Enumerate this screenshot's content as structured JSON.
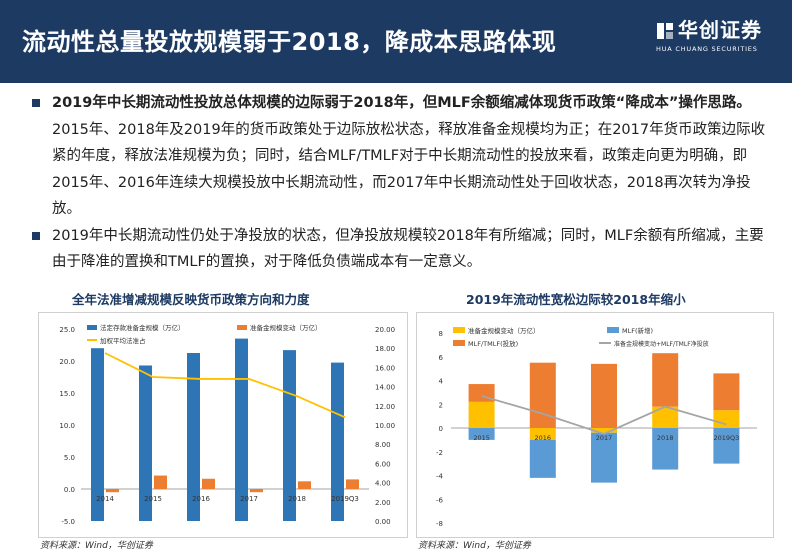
{
  "header": {
    "title": "流动性总量投放规模弱于2018，降成本思路体现",
    "logo_name": "华创证券",
    "logo_sub": "HUA CHUANG SECURITIES"
  },
  "bullets": [
    {
      "bold_text": "2019年中长期流动性投放总体规模的边际弱于2018年，但MLF余额缩减体现货币政策“降成本”操作思路。",
      "text": "2015年、2018年及2019年的货币政策处于边际放松状态，释放准备金规模均为正；在2017年货币政策边际收紧的年度，释放法准规模为负；同时，结合MLF/TMLF对于中长期流动性的投放来看，政策走向更为明确，即2015年、2016年连续大规模投放中长期流动性，而2017年中长期流动性处于回收状态，2018再次转为净投放。"
    },
    {
      "bold_text": "",
      "text": "2019年中长期流动性仍处于净投放的状态，但净投放规模较2018年有所缩减；同时，MLF余额有所缩减，主要由于降准的置换和TMLF的置换，对于降低负债端成本有一定意义。"
    }
  ],
  "chart_left_title": "全年法准增减规模反映货币政策方向和力度",
  "chart_right_title": "2019年流动性宽松边际较2018年缩小",
  "source_left": "资料来源：Wind，华创证券",
  "source_right": "资料来源：Wind，华创证券",
  "chart_data": [
    {
      "type": "bar",
      "title": "全年法准增减规模反映货币政策方向和力度",
      "categories": [
        "2014",
        "2015",
        "2016",
        "2017",
        "2018",
        "2019Q3"
      ],
      "series": [
        {
          "name": "法定存款准备金规模（万亿）",
          "axis": "right",
          "values": [
            18.0,
            16.2,
            17.5,
            19.0,
            17.8,
            16.5
          ],
          "color": "#2e75b6"
        },
        {
          "name": "准备金规模变动（万亿）",
          "axis": "left",
          "values": [
            -0.5,
            2.1,
            1.6,
            -0.5,
            1.2,
            1.5
          ],
          "color": "#ed7d31"
        },
        {
          "name": "加权平均法准占",
          "axis": "right",
          "values": [
            17.5,
            15.0,
            14.8,
            14.8,
            13.0,
            10.8
          ],
          "color": "#ffc000",
          "kind": "line"
        }
      ],
      "y_left": {
        "ticks": [
          "25.0",
          "20.0",
          "15.0",
          "10.0",
          "5.0",
          "0.0",
          "-5.0"
        ],
        "range": [
          -5,
          25
        ]
      },
      "y_right": {
        "ticks": [
          "20.00",
          "18.00",
          "16.00",
          "14.00",
          "12.00",
          "10.00",
          "8.00",
          "6.00",
          "4.00",
          "2.00",
          "0.00"
        ],
        "range": [
          0,
          20
        ]
      }
    },
    {
      "type": "bar",
      "title": "2019年流动性宽松边际较2018年缩小",
      "categories": [
        "2015",
        "2016",
        "2017",
        "2018",
        "2019Q3"
      ],
      "series": [
        {
          "name": "准备金规模变动（万亿）",
          "values": [
            2.2,
            -1.0,
            -0.4,
            1.8,
            1.5
          ],
          "color": "#ffc000"
        },
        {
          "name": "MLF(新增)",
          "values": [
            -1.0,
            -3.2,
            -4.2,
            -3.5,
            -3.0
          ],
          "color": "#5b9bd5"
        },
        {
          "name": "MLF/TMLF(投放)",
          "values": [
            1.5,
            5.5,
            5.4,
            4.5,
            3.1
          ],
          "color": "#ed7d31"
        },
        {
          "name": "准备金规模变动+MLF/TMLF净投放",
          "values": [
            2.7,
            1.2,
            -0.5,
            1.8,
            0.3
          ],
          "color": "#a5a5a5",
          "kind": "line"
        }
      ],
      "y": {
        "ticks": [
          "8",
          "6",
          "4",
          "2",
          "0",
          "-2",
          "-4",
          "-6",
          "-8"
        ],
        "range": [
          -8,
          8
        ]
      }
    }
  ]
}
